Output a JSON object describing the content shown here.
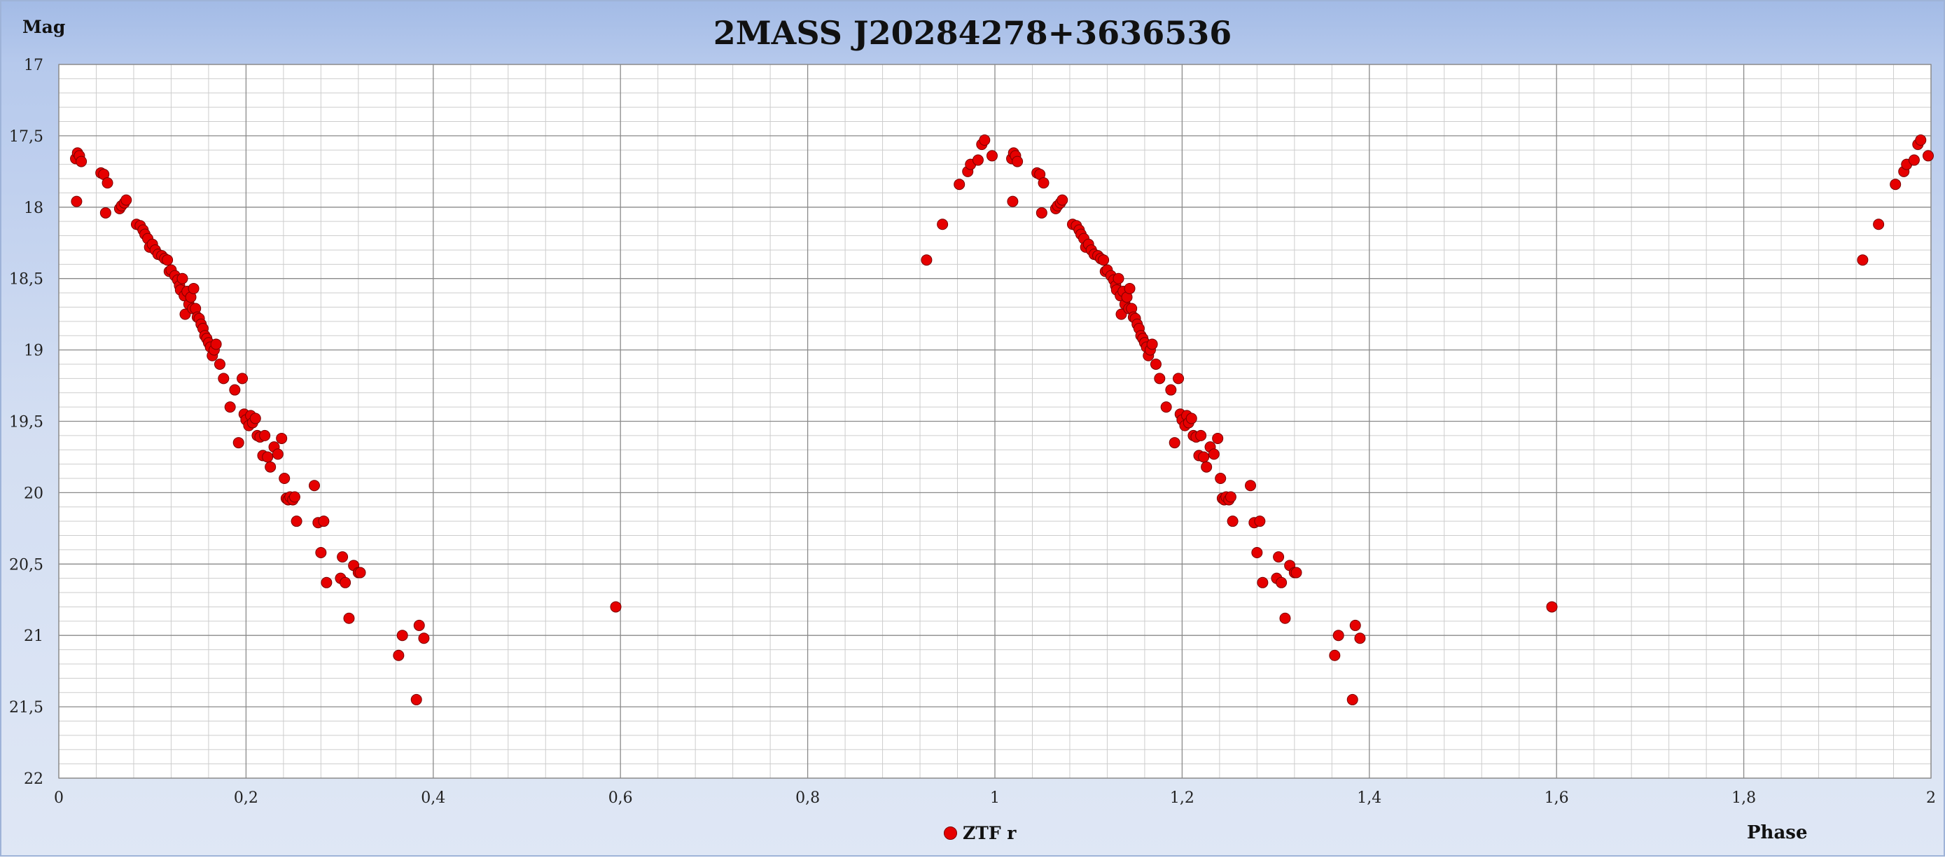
{
  "chart_data": {
    "type": "scatter",
    "title": "2MASS J20284278+3636536",
    "xlabel": "Phase",
    "ylabel": "Mag",
    "xlim": [
      0,
      2
    ],
    "ylim": [
      17,
      22
    ],
    "y_inverted": true,
    "grid": true,
    "legend_position": "bottom-center",
    "x_tick_labels": [
      "0",
      "0,2",
      "0,4",
      "0,6",
      "0,8",
      "1",
      "1,2",
      "1,4",
      "1,6",
      "1,8",
      "2"
    ],
    "y_tick_labels": [
      "17",
      "17,5",
      "18",
      "18,5",
      "19",
      "19,5",
      "20",
      "20,5",
      "21",
      "21,5",
      "22"
    ],
    "series": [
      {
        "name": "ZTF r",
        "color": "#e60000",
        "x": [
          0.018,
          0.02,
          0.022,
          0.024,
          0.019,
          0.045,
          0.048,
          0.05,
          0.052,
          0.065,
          0.067,
          0.07,
          0.072,
          0.083,
          0.087,
          0.09,
          0.092,
          0.095,
          0.097,
          0.1,
          0.103,
          0.106,
          0.11,
          0.113,
          0.116,
          0.118,
          0.12,
          0.124,
          0.127,
          0.129,
          0.13,
          0.132,
          0.134,
          0.135,
          0.137,
          0.139,
          0.141,
          0.143,
          0.144,
          0.146,
          0.148,
          0.15,
          0.152,
          0.154,
          0.156,
          0.158,
          0.16,
          0.162,
          0.164,
          0.166,
          0.168,
          0.172,
          0.176,
          0.183,
          0.188,
          0.192,
          0.196,
          0.198,
          0.2,
          0.203,
          0.205,
          0.207,
          0.21,
          0.212,
          0.215,
          0.218,
          0.22,
          0.223,
          0.226,
          0.23,
          0.234,
          0.238,
          0.241,
          0.243,
          0.245,
          0.247,
          0.25,
          0.252,
          0.254,
          0.273,
          0.277,
          0.28,
          0.283,
          0.286,
          0.301,
          0.303,
          0.306,
          0.31,
          0.315,
          0.32,
          0.322,
          0.363,
          0.367,
          0.382,
          0.385,
          0.39,
          0.595,
          0.927,
          0.944,
          0.962,
          0.971,
          0.974,
          0.982,
          0.986,
          0.989,
          0.997
        ],
        "y": [
          17.66,
          17.62,
          17.64,
          17.68,
          17.96,
          17.76,
          17.77,
          18.04,
          17.83,
          18.01,
          17.99,
          17.97,
          17.95,
          18.12,
          18.13,
          18.16,
          18.19,
          18.22,
          18.28,
          18.26,
          18.3,
          18.33,
          18.34,
          18.36,
          18.37,
          18.45,
          18.44,
          18.48,
          18.51,
          18.55,
          18.58,
          18.5,
          18.62,
          18.75,
          18.59,
          18.68,
          18.63,
          18.71,
          18.57,
          18.71,
          18.77,
          18.78,
          18.82,
          18.85,
          18.9,
          18.92,
          18.95,
          18.98,
          19.04,
          19.0,
          18.96,
          19.1,
          19.2,
          19.4,
          19.28,
          19.65,
          19.2,
          19.45,
          19.49,
          19.53,
          19.46,
          19.51,
          19.48,
          19.6,
          19.61,
          19.74,
          19.6,
          19.75,
          19.82,
          19.68,
          19.73,
          19.62,
          19.9,
          20.04,
          20.05,
          20.03,
          20.05,
          20.03,
          20.2,
          19.95,
          20.21,
          20.42,
          20.2,
          20.63,
          20.6,
          20.45,
          20.63,
          20.88,
          20.51,
          20.56,
          20.56,
          21.14,
          21.0,
          21.45,
          20.93,
          21.02,
          20.8,
          18.37,
          18.12,
          17.84,
          17.75,
          17.7,
          17.67,
          17.56,
          17.53,
          17.64
        ]
      }
    ]
  }
}
